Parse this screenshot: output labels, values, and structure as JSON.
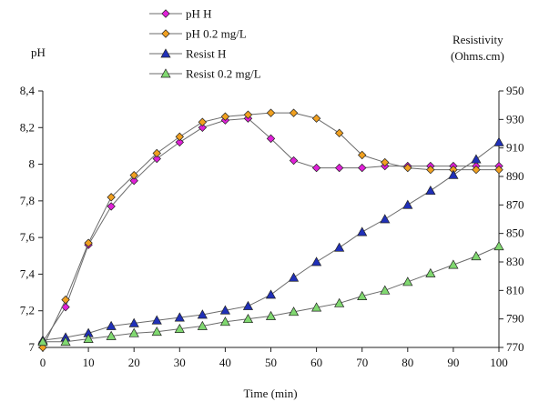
{
  "chart_data": {
    "type": "line",
    "xlabel": "Time (min)",
    "y_left": {
      "label": "pH",
      "ylim": [
        7,
        8.4
      ],
      "ticks": [
        7,
        7.2,
        7.4,
        7.6,
        7.8,
        8,
        8.2,
        8.4
      ],
      "tick_labels": [
        "7",
        "7,2",
        "7,4",
        "7,6",
        "7,8",
        "8",
        "8,2",
        "8,4"
      ]
    },
    "y_right": {
      "label_line1": "Resistivity",
      "label_line2": "(Ohms.cm)",
      "ylim": [
        770,
        950
      ],
      "ticks": [
        770,
        790,
        810,
        830,
        850,
        870,
        890,
        910,
        930,
        950
      ],
      "tick_labels": [
        "770",
        "790",
        "810",
        "830",
        "850",
        "870",
        "890",
        "910",
        "930",
        "950"
      ]
    },
    "x": [
      0,
      5,
      10,
      15,
      20,
      25,
      30,
      35,
      40,
      45,
      50,
      55,
      60,
      65,
      70,
      75,
      80,
      85,
      90,
      95,
      100
    ],
    "x_ticks": [
      0,
      10,
      20,
      30,
      40,
      50,
      60,
      70,
      80,
      90,
      100
    ],
    "x_tick_labels": [
      "0",
      "10",
      "20",
      "30",
      "40",
      "50",
      "60",
      "70",
      "80",
      "90",
      "100"
    ],
    "xlim": [
      0,
      100
    ],
    "grid": false,
    "legend_position": "top-center",
    "series": [
      {
        "name": "pH H",
        "axis": "left",
        "marker": "diamond",
        "color": "#e020d8",
        "values": [
          7.03,
          7.22,
          7.56,
          7.77,
          7.91,
          8.03,
          8.12,
          8.2,
          8.24,
          8.25,
          8.14,
          8.02,
          7.98,
          7.98,
          7.98,
          7.99,
          7.99,
          7.99,
          7.99,
          7.99,
          7.99
        ]
      },
      {
        "name": "pH 0.2 mg/L",
        "axis": "left",
        "marker": "diamond",
        "color": "#f0a020",
        "values": [
          7.0,
          7.26,
          7.57,
          7.82,
          7.94,
          8.06,
          8.15,
          8.23,
          8.26,
          8.27,
          8.28,
          8.28,
          8.25,
          8.17,
          8.05,
          8.01,
          7.98,
          7.97,
          7.97,
          7.97,
          7.97
        ]
      },
      {
        "name": "Resist H",
        "axis": "right",
        "marker": "triangle",
        "color": "#2030b8",
        "values": [
          775,
          777,
          780,
          785,
          787,
          789,
          791,
          793,
          796,
          799,
          807,
          819,
          830,
          840,
          851,
          860,
          870,
          880,
          891,
          902,
          914
        ]
      },
      {
        "name": "Resist 0.2 mg/L",
        "axis": "right",
        "marker": "triangle",
        "color": "#80d870",
        "values": [
          774,
          774,
          776,
          778,
          780,
          781,
          783,
          785,
          788,
          790,
          792,
          795,
          798,
          801,
          806,
          810,
          816,
          822,
          828,
          834,
          841
        ]
      }
    ]
  }
}
